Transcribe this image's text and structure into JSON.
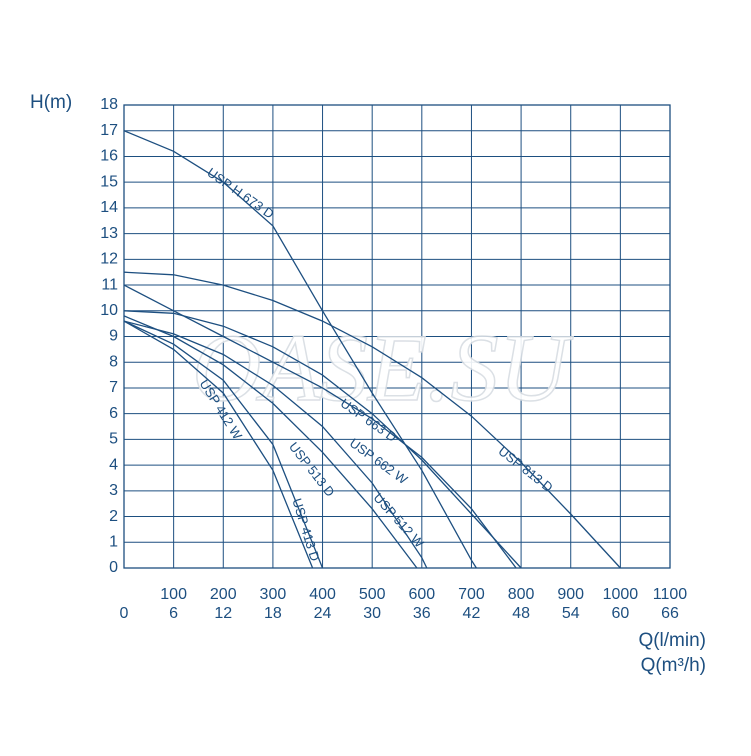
{
  "chart_data": {
    "type": "line",
    "y_label": "H(m)",
    "x_label": "Q(l/min)",
    "x2_label": "Q(m³/h)",
    "watermark": "OASE.SU",
    "color": "#1d4f80",
    "grid": true,
    "xlim": [
      0,
      1100
    ],
    "xticks": [
      100,
      200,
      300,
      400,
      500,
      600,
      700,
      800,
      900,
      1000,
      1100
    ],
    "x2lim": [
      0,
      66
    ],
    "x2ticks": [
      0,
      6,
      12,
      18,
      24,
      30,
      36,
      42,
      48,
      54,
      60,
      66
    ],
    "ylim": [
      0,
      18
    ],
    "yticks": [
      0,
      1,
      2,
      3,
      4,
      5,
      6,
      7,
      8,
      9,
      10,
      11,
      12,
      13,
      14,
      15,
      16,
      17,
      18
    ],
    "series": [
      {
        "name": "USP H 673 D",
        "x": [
          0,
          100,
          200,
          300,
          400,
          500,
          600,
          700,
          710
        ],
        "values": [
          17,
          16.2,
          15,
          13.3,
          10,
          6.8,
          3.8,
          0.3,
          0
        ]
      },
      {
        "name": "USP 813 D",
        "x": [
          0,
          100,
          200,
          300,
          400,
          500,
          600,
          700,
          800,
          900,
          1000
        ],
        "values": [
          11.5,
          11.4,
          11,
          10.4,
          9.6,
          8.6,
          7.4,
          5.9,
          4.1,
          2.1,
          0
        ]
      },
      {
        "name": "USP 663 D",
        "x": [
          0,
          100,
          200,
          300,
          400,
          500,
          600,
          700,
          790
        ],
        "values": [
          11,
          10,
          9,
          8,
          7,
          5.8,
          4.3,
          2.3,
          0
        ]
      },
      {
        "name": "USP 662 W",
        "x": [
          0,
          100,
          200,
          300,
          400,
          500,
          600,
          700,
          800
        ],
        "values": [
          10,
          9.9,
          9.4,
          8.6,
          7.5,
          6,
          4.2,
          2.1,
          0
        ]
      },
      {
        "name": "USP 512 W",
        "x": [
          0,
          100,
          200,
          300,
          400,
          500,
          600,
          610
        ],
        "values": [
          9.6,
          9.1,
          8.3,
          7.1,
          5.5,
          3.3,
          0.4,
          0
        ]
      },
      {
        "name": "USP 513 D",
        "x": [
          0,
          100,
          200,
          300,
          400,
          500,
          590
        ],
        "values": [
          9.8,
          9,
          7.9,
          6.4,
          4.5,
          2.3,
          0
        ]
      },
      {
        "name": "USP 412 W",
        "x": [
          0,
          100,
          200,
          300,
          380
        ],
        "values": [
          9.6,
          8.5,
          6.8,
          3.8,
          0
        ]
      },
      {
        "name": "USP 413 D",
        "x": [
          0,
          100,
          200,
          300,
          400
        ],
        "values": [
          9.6,
          8.7,
          7.3,
          4.8,
          0
        ]
      }
    ]
  }
}
